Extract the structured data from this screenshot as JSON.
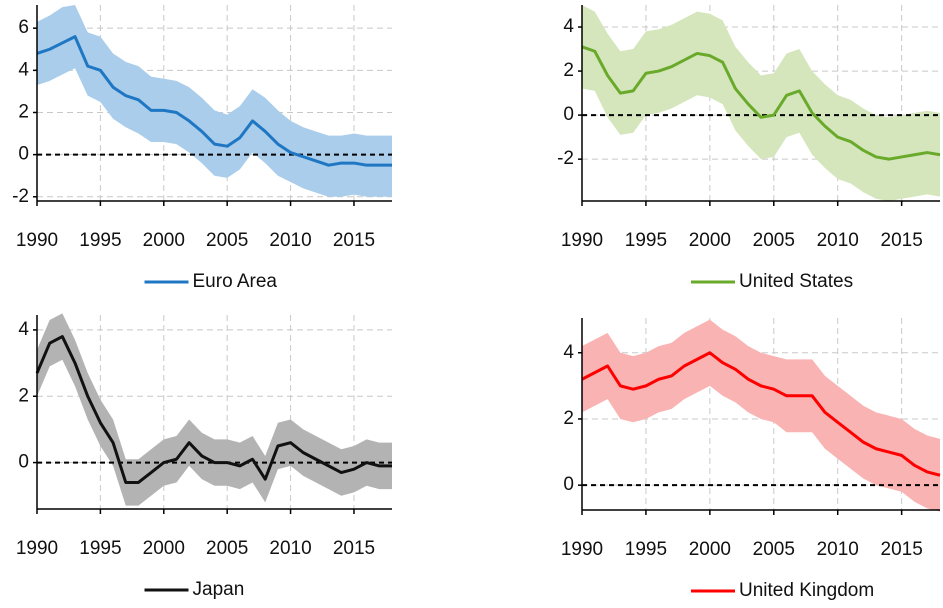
{
  "chart_data": [
    {
      "type": "line",
      "x": [
        1990,
        1991,
        1992,
        1993,
        1994,
        1995,
        1996,
        1997,
        1998,
        1999,
        2000,
        2001,
        2002,
        2003,
        2004,
        2005,
        2006,
        2007,
        2008,
        2009,
        2010,
        2011,
        2012,
        2013,
        2014,
        2015,
        2016,
        2017,
        2018
      ],
      "series": [
        {
          "name": "Euro Area",
          "color": "#1f77c4",
          "band_color": "#a9cdea",
          "values": [
            4.8,
            5.0,
            5.3,
            5.6,
            4.2,
            4.0,
            3.2,
            2.8,
            2.6,
            2.1,
            2.1,
            2.0,
            1.6,
            1.1,
            0.5,
            0.4,
            0.8,
            1.6,
            1.1,
            0.5,
            0.1,
            -0.1,
            -0.3,
            -0.5,
            -0.4,
            -0.4,
            -0.5,
            -0.5,
            -0.5
          ],
          "upper": [
            6.3,
            6.6,
            7.0,
            7.1,
            5.8,
            5.6,
            4.8,
            4.4,
            4.2,
            3.7,
            3.6,
            3.5,
            3.2,
            2.7,
            2.1,
            1.9,
            2.3,
            3.1,
            2.7,
            2.1,
            1.6,
            1.3,
            1.1,
            0.9,
            0.9,
            1.0,
            0.9,
            0.9,
            0.9
          ],
          "lower": [
            3.3,
            3.5,
            3.8,
            4.1,
            2.8,
            2.5,
            1.7,
            1.3,
            1.0,
            0.6,
            0.6,
            0.5,
            0.1,
            -0.4,
            -1.0,
            -1.1,
            -0.7,
            0.1,
            -0.4,
            -1.0,
            -1.3,
            -1.6,
            -1.8,
            -2.0,
            -2.0,
            -1.9,
            -2.0,
            -2.0,
            -2.0
          ]
        }
      ],
      "xlim": [
        1990,
        2018
      ],
      "xticks": [
        1990,
        1995,
        2000,
        2005,
        2010,
        2015
      ],
      "ylim": [
        -2.2,
        7.1
      ],
      "yticks": [
        -2,
        0,
        2,
        4,
        6
      ],
      "grid": true,
      "zero_line": true
    },
    {
      "type": "line",
      "x": [
        1990,
        1991,
        1992,
        1993,
        1994,
        1995,
        1996,
        1997,
        1998,
        1999,
        2000,
        2001,
        2002,
        2003,
        2004,
        2005,
        2006,
        2007,
        2008,
        2009,
        2010,
        2011,
        2012,
        2013,
        2014,
        2015,
        2016,
        2017,
        2018
      ],
      "series": [
        {
          "name": "United States",
          "color": "#6aaa2a",
          "band_color": "#d5e6bd",
          "values": [
            3.1,
            2.9,
            1.8,
            1.0,
            1.1,
            1.9,
            2.0,
            2.2,
            2.5,
            2.8,
            2.7,
            2.4,
            1.2,
            0.5,
            -0.1,
            0.0,
            0.9,
            1.1,
            0.1,
            -0.5,
            -1.0,
            -1.2,
            -1.6,
            -1.9,
            -2.0,
            -1.9,
            -1.8,
            -1.7,
            -1.8
          ],
          "upper": [
            5.0,
            4.7,
            3.7,
            2.9,
            3.0,
            3.8,
            3.9,
            4.1,
            4.4,
            4.7,
            4.6,
            4.3,
            3.1,
            2.4,
            1.8,
            1.9,
            2.8,
            3.0,
            2.0,
            1.4,
            0.9,
            0.7,
            0.3,
            0.0,
            -0.1,
            0.0,
            0.1,
            0.2,
            0.1
          ],
          "lower": [
            1.2,
            1.1,
            -0.1,
            -0.9,
            -0.8,
            0.0,
            0.1,
            0.3,
            0.6,
            0.9,
            0.8,
            0.5,
            -0.7,
            -1.4,
            -2.0,
            -1.9,
            -1.0,
            -0.8,
            -1.8,
            -2.4,
            -2.9,
            -3.1,
            -3.5,
            -3.8,
            -3.9,
            -3.8,
            -3.7,
            -3.6,
            -3.7
          ]
        }
      ],
      "xlim": [
        1990,
        2018
      ],
      "xticks": [
        1990,
        1995,
        2000,
        2005,
        2010,
        2015
      ],
      "ylim": [
        -3.9,
        5.0
      ],
      "yticks": [
        -2,
        0,
        2,
        4
      ],
      "grid": true,
      "zero_line": true
    },
    {
      "type": "line",
      "x": [
        1990,
        1991,
        1992,
        1993,
        1994,
        1995,
        1996,
        1997,
        1998,
        1999,
        2000,
        2001,
        2002,
        2003,
        2004,
        2005,
        2006,
        2007,
        2008,
        2009,
        2010,
        2011,
        2012,
        2013,
        2014,
        2015,
        2016,
        2017,
        2018
      ],
      "series": [
        {
          "name": "Japan",
          "color": "#111111",
          "band_color": "#b3b3b3",
          "values": [
            2.7,
            3.6,
            3.8,
            3.0,
            2.0,
            1.2,
            0.6,
            -0.6,
            -0.6,
            -0.3,
            0.0,
            0.1,
            0.6,
            0.2,
            0.0,
            0.0,
            -0.1,
            0.1,
            -0.5,
            0.5,
            0.6,
            0.3,
            0.1,
            -0.1,
            -0.3,
            -0.2,
            0.0,
            -0.1,
            -0.1
          ],
          "upper": [
            3.4,
            4.3,
            4.5,
            3.7,
            2.7,
            1.9,
            1.3,
            0.1,
            0.1,
            0.4,
            0.7,
            0.8,
            1.3,
            0.9,
            0.7,
            0.7,
            0.6,
            0.8,
            0.2,
            1.2,
            1.3,
            1.0,
            0.8,
            0.6,
            0.4,
            0.5,
            0.7,
            0.6,
            0.6
          ],
          "lower": [
            2.0,
            2.9,
            3.1,
            2.3,
            1.3,
            0.5,
            -0.1,
            -1.3,
            -1.3,
            -1.0,
            -0.7,
            -0.6,
            -0.1,
            -0.5,
            -0.7,
            -0.7,
            -0.8,
            -0.6,
            -1.2,
            -0.2,
            -0.1,
            -0.4,
            -0.6,
            -0.8,
            -1.0,
            -0.9,
            -0.7,
            -0.8,
            -0.8
          ]
        }
      ],
      "xlim": [
        1990,
        2018
      ],
      "xticks": [
        1990,
        1995,
        2000,
        2005,
        2010,
        2015
      ],
      "ylim": [
        -1.4,
        4.45
      ],
      "yticks": [
        0,
        2,
        4
      ],
      "grid": true,
      "zero_line": true
    },
    {
      "type": "line",
      "x": [
        1990,
        1991,
        1992,
        1993,
        1994,
        1995,
        1996,
        1997,
        1998,
        1999,
        2000,
        2001,
        2002,
        2003,
        2004,
        2005,
        2006,
        2007,
        2008,
        2009,
        2010,
        2011,
        2012,
        2013,
        2014,
        2015,
        2016,
        2017,
        2018
      ],
      "series": [
        {
          "name": "United Kingdom",
          "color": "#ff0000",
          "band_color": "#f9b3b3",
          "values": [
            3.2,
            3.4,
            3.6,
            3.0,
            2.9,
            3.0,
            3.2,
            3.3,
            3.6,
            3.8,
            4.0,
            3.7,
            3.5,
            3.2,
            3.0,
            2.9,
            2.7,
            2.7,
            2.7,
            2.2,
            1.9,
            1.6,
            1.3,
            1.1,
            1.0,
            0.9,
            0.6,
            0.4,
            0.3
          ],
          "upper": [
            4.2,
            4.4,
            4.6,
            4.0,
            3.9,
            4.0,
            4.2,
            4.3,
            4.6,
            4.8,
            5.0,
            4.7,
            4.5,
            4.2,
            4.0,
            3.9,
            3.8,
            3.8,
            3.8,
            3.3,
            3.0,
            2.7,
            2.4,
            2.2,
            2.1,
            2.0,
            1.7,
            1.5,
            1.4
          ],
          "lower": [
            2.2,
            2.4,
            2.6,
            2.0,
            1.9,
            2.0,
            2.2,
            2.3,
            2.6,
            2.8,
            3.0,
            2.7,
            2.5,
            2.2,
            2.0,
            1.9,
            1.6,
            1.6,
            1.6,
            1.1,
            0.8,
            0.5,
            0.2,
            0.0,
            -0.1,
            -0.2,
            -0.5,
            -0.7,
            -0.8
          ]
        }
      ],
      "xlim": [
        1990,
        2018
      ],
      "xticks": [
        1990,
        1995,
        2000,
        2005,
        2010,
        2015
      ],
      "ylim": [
        -0.75,
        5.05
      ],
      "yticks": [
        0,
        2,
        4
      ],
      "grid": true,
      "zero_line": true
    }
  ]
}
